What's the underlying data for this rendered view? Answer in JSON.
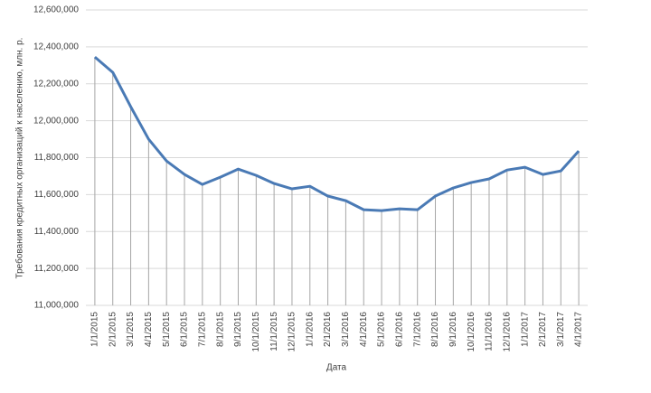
{
  "chart_data": {
    "type": "line",
    "x_label": "Дата",
    "y_label": "Требования кредитных организаций к населению, млн. р.",
    "categories": [
      "1/1/2015",
      "2/1/2015",
      "3/1/2015",
      "4/1/2015",
      "5/1/2015",
      "6/1/2015",
      "7/1/2015",
      "8/1/2015",
      "9/1/2015",
      "10/1/2015",
      "11/1/2015",
      "12/1/2015",
      "1/1/2016",
      "2/1/2016",
      "3/1/2016",
      "4/1/2016",
      "5/1/2016",
      "6/1/2016",
      "7/1/2016",
      "8/1/2016",
      "9/1/2016",
      "10/1/2016",
      "11/1/2016",
      "12/1/2016",
      "1/1/2017",
      "2/1/2017",
      "3/1/2017",
      "4/1/2017"
    ],
    "values": [
      12345000,
      12262000,
      12076000,
      11900000,
      11782000,
      11709000,
      11655000,
      11694000,
      11738000,
      11704000,
      11660000,
      11631000,
      11645000,
      11592000,
      11567000,
      11518000,
      11513000,
      11523000,
      11518000,
      11592000,
      11636000,
      11665000,
      11685000,
      11733000,
      11748000,
      11709000,
      11728000,
      11836000
    ],
    "color": "#4a7ab5",
    "drop_lines": true,
    "drop_line_color": "#a6a6a6",
    "ylim": [
      11000000,
      12600000
    ],
    "yticks": [
      {
        "value": 11000000,
        "label": "11,000,000"
      },
      {
        "value": 11200000,
        "label": "11,200,000"
      },
      {
        "value": 11400000,
        "label": "11,400,000"
      },
      {
        "value": 11600000,
        "label": "11,600,000"
      },
      {
        "value": 11800000,
        "label": "11,800,000"
      },
      {
        "value": 12000000,
        "label": "12,000,000"
      },
      {
        "value": 12200000,
        "label": "12,200,000"
      },
      {
        "value": 12400000,
        "label": "12,400,000"
      },
      {
        "value": 12600000,
        "label": "12,600,000"
      }
    ],
    "grid": true
  }
}
